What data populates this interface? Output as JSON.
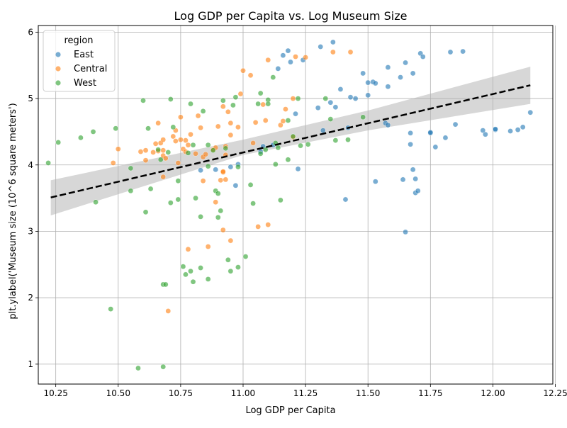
{
  "chart_data": {
    "type": "scatter",
    "title": "Log GDP per Capita vs. Log Museum Size",
    "xlabel": "Log GDP per Capita",
    "ylabel": "plt.ylabel('Museum size (10^6 square meters')",
    "xlim": [
      10.18,
      12.24
    ],
    "ylim": [
      0.7,
      6.1
    ],
    "x_ticks": [
      10.25,
      10.5,
      10.75,
      11.0,
      11.25,
      11.5,
      11.75,
      12.0,
      12.25
    ],
    "x_tick_labels": [
      "10.25",
      "10.50",
      "10.75",
      "11.00",
      "11.25",
      "11.50",
      "11.75",
      "12.00",
      "12.25"
    ],
    "y_ticks": [
      1,
      2,
      3,
      4,
      5,
      6
    ],
    "y_tick_labels": [
      "1",
      "2",
      "3",
      "4",
      "5",
      "6"
    ],
    "grid": true,
    "legend": {
      "title": "region",
      "placement": "top-left",
      "entries": [
        "East",
        "Central",
        "West"
      ]
    },
    "colors": {
      "East": "#1f77b4",
      "Central": "#ff7f0e",
      "West": "#2ca02c",
      "trend": "#000000",
      "band": "#b0b0b0"
    },
    "trend_line": {
      "style": "dashed",
      "x": [
        10.23,
        12.15
      ],
      "y": [
        3.51,
        5.2
      ]
    },
    "confidence_band": {
      "x": [
        10.23,
        11.0,
        11.5,
        12.15
      ],
      "lower": [
        3.24,
        4.15,
        4.52,
        4.92
      ],
      "upper": [
        3.77,
        4.38,
        4.82,
        5.48
      ]
    },
    "series": [
      {
        "name": "East",
        "points": [
          [
            10.83,
            3.92
          ],
          [
            10.89,
            3.93
          ],
          [
            10.95,
            3.97
          ],
          [
            10.97,
            3.69
          ],
          [
            10.98,
            4.01
          ],
          [
            11.07,
            4.2
          ],
          [
            11.08,
            4.28
          ],
          [
            11.12,
            4.3
          ],
          [
            11.14,
            5.45
          ],
          [
            11.16,
            5.65
          ],
          [
            11.18,
            5.72
          ],
          [
            11.19,
            5.55
          ],
          [
            11.21,
            4.77
          ],
          [
            11.22,
            3.94
          ],
          [
            11.24,
            5.58
          ],
          [
            11.3,
            4.86
          ],
          [
            11.31,
            5.78
          ],
          [
            11.32,
            4.52
          ],
          [
            11.35,
            4.94
          ],
          [
            11.36,
            5.85
          ],
          [
            11.37,
            4.87
          ],
          [
            11.39,
            5.14
          ],
          [
            11.41,
            3.48
          ],
          [
            11.42,
            4.56
          ],
          [
            11.43,
            5.02
          ],
          [
            11.45,
            5.0
          ],
          [
            11.48,
            5.38
          ],
          [
            11.5,
            5.05
          ],
          [
            11.5,
            5.24
          ],
          [
            11.52,
            5.25
          ],
          [
            11.53,
            5.23
          ],
          [
            11.53,
            3.75
          ],
          [
            11.57,
            4.63
          ],
          [
            11.58,
            5.47
          ],
          [
            11.58,
            5.18
          ],
          [
            11.58,
            4.6
          ],
          [
            11.63,
            5.32
          ],
          [
            11.64,
            3.78
          ],
          [
            11.65,
            5.54
          ],
          [
            11.65,
            2.99
          ],
          [
            11.67,
            4.48
          ],
          [
            11.67,
            4.31
          ],
          [
            11.68,
            3.93
          ],
          [
            11.68,
            5.38
          ],
          [
            11.69,
            3.79
          ],
          [
            11.69,
            3.58
          ],
          [
            11.7,
            3.61
          ],
          [
            11.71,
            5.68
          ],
          [
            11.72,
            5.63
          ],
          [
            11.75,
            4.48
          ],
          [
            11.75,
            4.49
          ],
          [
            11.77,
            4.27
          ],
          [
            11.81,
            4.41
          ],
          [
            11.83,
            5.7
          ],
          [
            11.85,
            4.61
          ],
          [
            11.88,
            5.71
          ],
          [
            11.96,
            4.52
          ],
          [
            11.97,
            4.46
          ],
          [
            12.01,
            4.53
          ],
          [
            12.01,
            4.54
          ],
          [
            12.07,
            4.51
          ],
          [
            12.1,
            4.53
          ],
          [
            12.12,
            4.57
          ],
          [
            12.15,
            4.79
          ]
        ]
      },
      {
        "name": "Central",
        "points": [
          [
            10.48,
            4.03
          ],
          [
            10.5,
            4.24
          ],
          [
            10.59,
            4.2
          ],
          [
            10.61,
            4.07
          ],
          [
            10.61,
            4.22
          ],
          [
            10.64,
            4.19
          ],
          [
            10.65,
            4.32
          ],
          [
            10.66,
            4.63
          ],
          [
            10.66,
            4.21
          ],
          [
            10.67,
            4.33
          ],
          [
            10.68,
            4.14
          ],
          [
            10.68,
            4.38
          ],
          [
            10.68,
            4.22
          ],
          [
            10.68,
            3.82
          ],
          [
            10.69,
            4.1
          ],
          [
            10.7,
            1.8
          ],
          [
            10.72,
            4.43
          ],
          [
            10.73,
            4.52
          ],
          [
            10.73,
            4.36
          ],
          [
            10.74,
            4.03
          ],
          [
            10.75,
            4.38
          ],
          [
            10.75,
            4.72
          ],
          [
            10.76,
            4.24
          ],
          [
            10.77,
            4.2
          ],
          [
            10.77,
            4.37
          ],
          [
            10.78,
            4.3
          ],
          [
            10.78,
            2.73
          ],
          [
            10.79,
            4.46
          ],
          [
            10.81,
            4.17
          ],
          [
            10.82,
            4.74
          ],
          [
            10.83,
            4.56
          ],
          [
            10.84,
            3.76
          ],
          [
            10.84,
            4.12
          ],
          [
            10.85,
            4.16
          ],
          [
            10.86,
            2.77
          ],
          [
            10.88,
            4.23
          ],
          [
            10.89,
            4.26
          ],
          [
            10.89,
            3.44
          ],
          [
            10.9,
            4.58
          ],
          [
            10.91,
            3.77
          ],
          [
            10.92,
            3.02
          ],
          [
            10.92,
            3.89
          ],
          [
            10.92,
            3.9
          ],
          [
            10.92,
            4.88
          ],
          [
            10.93,
            3.78
          ],
          [
            10.93,
            4.28
          ],
          [
            10.93,
            4.15
          ],
          [
            10.94,
            4.8
          ],
          [
            10.95,
            2.86
          ],
          [
            10.95,
            4.45
          ],
          [
            10.95,
            4.63
          ],
          [
            10.98,
            4.57
          ],
          [
            10.99,
            5.07
          ],
          [
            11.0,
            5.42
          ],
          [
            11.03,
            5.35
          ],
          [
            11.04,
            4.33
          ],
          [
            11.05,
            4.64
          ],
          [
            11.06,
            3.07
          ],
          [
            11.08,
            4.91
          ],
          [
            11.09,
            4.67
          ],
          [
            11.1,
            3.1
          ],
          [
            11.1,
            5.58
          ],
          [
            11.15,
            4.6
          ],
          [
            11.16,
            4.66
          ],
          [
            11.17,
            4.84
          ],
          [
            11.2,
            4.42
          ],
          [
            11.2,
            5.0
          ],
          [
            11.21,
            5.63
          ],
          [
            11.25,
            5.62
          ],
          [
            11.36,
            5.7
          ],
          [
            11.43,
            5.7
          ]
        ]
      },
      {
        "name": "West",
        "points": [
          [
            10.22,
            4.03
          ],
          [
            10.26,
            4.34
          ],
          [
            10.35,
            4.41
          ],
          [
            10.4,
            4.5
          ],
          [
            10.41,
            3.44
          ],
          [
            10.47,
            1.83
          ],
          [
            10.49,
            4.55
          ],
          [
            10.55,
            3.95
          ],
          [
            10.55,
            3.61
          ],
          [
            10.58,
            0.94
          ],
          [
            10.6,
            4.97
          ],
          [
            10.61,
            3.29
          ],
          [
            10.62,
            4.55
          ],
          [
            10.63,
            3.64
          ],
          [
            10.66,
            4.23
          ],
          [
            10.67,
            4.08
          ],
          [
            10.68,
            0.96
          ],
          [
            10.68,
            2.2
          ],
          [
            10.69,
            2.2
          ],
          [
            10.7,
            4.19
          ],
          [
            10.71,
            4.99
          ],
          [
            10.71,
            3.43
          ],
          [
            10.72,
            4.57
          ],
          [
            10.74,
            3.76
          ],
          [
            10.74,
            3.48
          ],
          [
            10.76,
            2.47
          ],
          [
            10.77,
            2.35
          ],
          [
            10.78,
            4.18
          ],
          [
            10.79,
            4.92
          ],
          [
            10.79,
            2.4
          ],
          [
            10.8,
            2.24
          ],
          [
            10.8,
            4.3
          ],
          [
            10.81,
            3.5
          ],
          [
            10.83,
            3.22
          ],
          [
            10.84,
            4.81
          ],
          [
            10.83,
            2.45
          ],
          [
            10.86,
            4.3
          ],
          [
            10.86,
            2.28
          ],
          [
            10.86,
            3.98
          ],
          [
            10.88,
            4.22
          ],
          [
            10.89,
            3.61
          ],
          [
            10.9,
            3.21
          ],
          [
            10.9,
            3.57
          ],
          [
            10.91,
            3.31
          ],
          [
            10.92,
            4.97
          ],
          [
            10.93,
            4.25
          ],
          [
            10.94,
            2.57
          ],
          [
            10.95,
            2.4
          ],
          [
            10.96,
            4.9
          ],
          [
            10.97,
            5.02
          ],
          [
            10.98,
            2.46
          ],
          [
            10.98,
            3.97
          ],
          [
            11.01,
            2.62
          ],
          [
            11.03,
            3.7
          ],
          [
            11.04,
            3.42
          ],
          [
            11.06,
            4.92
          ],
          [
            11.07,
            4.17
          ],
          [
            11.07,
            5.08
          ],
          [
            11.09,
            4.23
          ],
          [
            11.1,
            4.98
          ],
          [
            11.1,
            4.92
          ],
          [
            11.12,
            5.32
          ],
          [
            11.13,
            4.33
          ],
          [
            11.14,
            4.26
          ],
          [
            11.13,
            4.01
          ],
          [
            11.15,
            3.47
          ],
          [
            11.18,
            4.08
          ],
          [
            11.18,
            4.67
          ],
          [
            11.2,
            4.43
          ],
          [
            11.22,
            5.0
          ],
          [
            11.23,
            4.29
          ],
          [
            11.26,
            4.31
          ],
          [
            11.33,
            5.0
          ],
          [
            11.35,
            4.69
          ],
          [
            11.37,
            4.37
          ],
          [
            11.42,
            4.38
          ],
          [
            11.48,
            4.72
          ]
        ]
      }
    ]
  }
}
